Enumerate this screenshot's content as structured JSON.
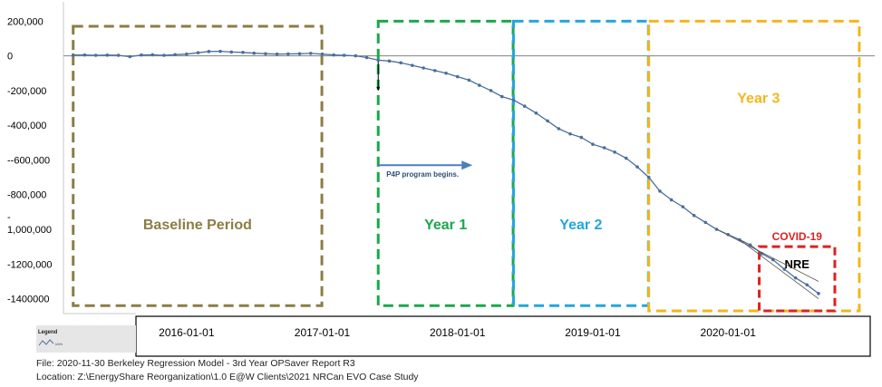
{
  "chart_data": {
    "type": "line",
    "y_ticks": [
      {
        "value": 200000,
        "label": "200,000"
      },
      {
        "value": 0,
        "label": "0"
      },
      {
        "value": -200000,
        "label": "-200,000"
      },
      {
        "value": -400000,
        "label": "-400,000"
      },
      {
        "value": -600000,
        "label": "--600,000"
      },
      {
        "value": -800000,
        "label": "-800,000"
      },
      {
        "value": -1000000,
        "label": "1,000,000",
        "prefix": "-"
      },
      {
        "value": -1200000,
        "label": "-1200,000"
      },
      {
        "value": -1400000,
        "label": "-1400000"
      }
    ],
    "ylim": [
      -1470000,
      280000
    ],
    "x_ticks": [
      "2016-01-01",
      "2017-01-01",
      "2018-01-01",
      "2019-01-01",
      "2020-01-01"
    ],
    "xlim": [
      "2015-02-15",
      "2020-12-25"
    ],
    "series": [
      {
        "color": "#4a6f9c",
        "points": [
          [
            "2015-03-01",
            5000
          ],
          [
            "2015-04-01",
            5000
          ],
          [
            "2015-05-01",
            3000
          ],
          [
            "2015-06-01",
            4000
          ],
          [
            "2015-07-01",
            3000
          ],
          [
            "2015-08-01",
            -5000
          ],
          [
            "2015-09-01",
            5000
          ],
          [
            "2015-10-01",
            6000
          ],
          [
            "2015-11-01",
            3000
          ],
          [
            "2015-12-01",
            7000
          ],
          [
            "2016-01-01",
            10000
          ],
          [
            "2016-02-01",
            18000
          ],
          [
            "2016-03-01",
            25000
          ],
          [
            "2016-04-01",
            26000
          ],
          [
            "2016-05-01",
            22000
          ],
          [
            "2016-06-01",
            20000
          ],
          [
            "2016-07-01",
            15000
          ],
          [
            "2016-08-01",
            12000
          ],
          [
            "2016-09-01",
            10000
          ],
          [
            "2016-10-01",
            11000
          ],
          [
            "2016-11-01",
            12000
          ],
          [
            "2016-12-01",
            14000
          ],
          [
            "2017-01-01",
            10000
          ],
          [
            "2017-02-01",
            5000
          ],
          [
            "2017-03-01",
            3000
          ],
          [
            "2017-04-01",
            0
          ],
          [
            "2017-05-01",
            -10000
          ],
          [
            "2017-06-01",
            -25000
          ],
          [
            "2017-07-01",
            -30000
          ],
          [
            "2017-08-01",
            -40000
          ],
          [
            "2017-09-01",
            -55000
          ],
          [
            "2017-10-01",
            -70000
          ],
          [
            "2017-11-01",
            -85000
          ],
          [
            "2017-12-01",
            -100000
          ],
          [
            "2018-01-01",
            -120000
          ],
          [
            "2018-02-01",
            -140000
          ],
          [
            "2018-03-01",
            -170000
          ],
          [
            "2018-04-01",
            -200000
          ],
          [
            "2018-05-01",
            -235000
          ],
          [
            "2018-06-01",
            -255000
          ],
          [
            "2018-07-01",
            -290000
          ],
          [
            "2018-08-01",
            -330000
          ],
          [
            "2018-09-01",
            -375000
          ],
          [
            "2018-10-01",
            -420000
          ],
          [
            "2018-11-01",
            -450000
          ],
          [
            "2018-12-01",
            -470000
          ],
          [
            "2019-01-01",
            -510000
          ],
          [
            "2019-02-01",
            -530000
          ],
          [
            "2019-03-01",
            -555000
          ],
          [
            "2019-04-01",
            -590000
          ],
          [
            "2019-05-01",
            -640000
          ],
          [
            "2019-06-01",
            -700000
          ],
          [
            "2019-07-01",
            -780000
          ],
          [
            "2019-08-01",
            -830000
          ],
          [
            "2019-09-01",
            -870000
          ],
          [
            "2019-10-01",
            -920000
          ],
          [
            "2019-11-01",
            -960000
          ],
          [
            "2019-12-01",
            -1000000
          ],
          [
            "2020-01-01",
            -1030000
          ],
          [
            "2020-02-01",
            -1060000
          ],
          [
            "2020-03-01",
            -1090000
          ],
          [
            "2020-04-01",
            -1140000
          ],
          [
            "2020-05-01",
            -1175000
          ],
          [
            "2020-06-01",
            -1230000
          ],
          [
            "2020-07-01",
            -1280000
          ],
          [
            "2020-08-01",
            -1320000
          ],
          [
            "2020-09-01",
            -1370000
          ]
        ]
      }
    ],
    "reference_line": {
      "y": 0,
      "color": "#808080"
    },
    "trend_lines": [
      {
        "from": [
          "2019-12-01",
          -1000000
        ],
        "to": [
          "2020-09-01",
          -1300000
        ],
        "color": "#555555"
      },
      {
        "from": [
          "2020-02-01",
          -1060000
        ],
        "to": [
          "2020-09-01",
          -1400000
        ],
        "color": "#555555"
      }
    ],
    "period_boxes": [
      {
        "label": "Baseline Period",
        "color": "#8b7d44",
        "x_from": "2015-03-01",
        "x_to": "2016-12-31",
        "y_top": 170000,
        "y_bottom": -1440000
      },
      {
        "label": "Year 1",
        "color": "#1aa84a",
        "x_from": "2017-06-01",
        "x_to": "2018-05-31",
        "y_top": 200000,
        "y_bottom": -1440000
      },
      {
        "label": "Year 2",
        "color": "#22a6df",
        "x_from": "2018-06-01",
        "x_to": "2019-05-31",
        "y_top": 200000,
        "y_bottom": -1440000
      },
      {
        "label": "Year 3",
        "color": "#f2b71c",
        "x_from": "2019-06-01",
        "x_to": "2020-12-20",
        "y_top": 200000,
        "y_bottom": -1470000
      },
      {
        "label": "COVID-19",
        "sublabel": "NRE",
        "color": "#e02020",
        "x_from": "2020-03-25",
        "x_to": "2020-10-15",
        "y_top": -1100000,
        "y_bottom": -1470000
      }
    ],
    "program_annotation": {
      "text": "P4P program begins.",
      "date": "2017-06-01",
      "arrow_color": "#4a7fbf"
    }
  },
  "legend": {
    "title": "Legend",
    "entry": "kWh"
  },
  "footer": {
    "file": "File: 2020-11-30 Berkeley Regression Model - 3rd Year OPSaver Report R3",
    "location": "Location: Z:\\EnergyShare Reorganization\\1.0   E@W Clients\\2021 NRCan EVO Case Study"
  }
}
